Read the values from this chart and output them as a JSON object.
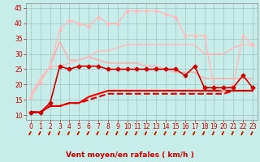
{
  "x": [
    0,
    1,
    2,
    3,
    4,
    5,
    6,
    7,
    8,
    9,
    10,
    11,
    12,
    13,
    14,
    15,
    16,
    17,
    18,
    19,
    20,
    21,
    22,
    23
  ],
  "lines": [
    {
      "y": [
        11,
        11,
        14,
        26,
        25,
        26,
        26,
        26,
        25,
        25,
        25,
        25,
        25,
        25,
        25,
        25,
        23,
        26,
        19,
        19,
        19,
        19,
        23,
        19
      ],
      "color": "#cc0000",
      "lw": 1.2,
      "marker": "D",
      "ms": 2.5,
      "ls": "-",
      "zorder": 5
    },
    {
      "y": [
        11,
        11,
        13,
        13,
        14,
        14,
        15,
        16,
        17,
        17,
        17,
        17,
        17,
        17,
        17,
        17,
        17,
        17,
        17,
        17,
        17,
        18,
        18,
        18
      ],
      "color": "#dd0000",
      "lw": 1.5,
      "marker": null,
      "ms": 0,
      "ls": "--",
      "zorder": 4
    },
    {
      "y": [
        11,
        11,
        13,
        13,
        14,
        14,
        16,
        17,
        18,
        18,
        18,
        18,
        18,
        18,
        18,
        18,
        18,
        18,
        18,
        18,
        18,
        18,
        18,
        18
      ],
      "color": "#ee0000",
      "lw": 1.5,
      "marker": null,
      "ms": 0,
      "ls": "-",
      "zorder": 3
    },
    {
      "y": [
        16,
        21,
        26,
        34,
        28,
        28,
        29,
        28,
        27,
        27,
        27,
        27,
        26,
        26,
        25,
        24,
        24,
        24,
        22,
        22,
        22,
        22,
        22,
        22
      ],
      "color": "#ffaaaa",
      "lw": 1.0,
      "marker": null,
      "ms": 0,
      "ls": "-",
      "zorder": 2
    },
    {
      "y": [
        17,
        22,
        26,
        26,
        27,
        28,
        29,
        31,
        31,
        32,
        33,
        33,
        33,
        33,
        33,
        33,
        33,
        33,
        30,
        30,
        30,
        32,
        33,
        33
      ],
      "color": "#ffbbbb",
      "lw": 1.0,
      "marker": null,
      "ms": 0,
      "ls": "-",
      "zorder": 2
    },
    {
      "y": [
        16,
        21,
        26,
        38,
        41,
        40,
        39,
        42,
        40,
        40,
        44,
        44,
        44,
        44,
        43,
        42,
        36,
        36,
        36,
        19,
        18,
        20,
        36,
        33
      ],
      "color": "#ffbbbb",
      "lw": 1.0,
      "marker": "^",
      "ms": 2.5,
      "ls": "-",
      "zorder": 3
    }
  ],
  "xlabel": "Vent moyen/en rafales ( km/h )",
  "xlim": [
    -0.5,
    23.5
  ],
  "ylim": [
    8.5,
    46.5
  ],
  "yticks": [
    10,
    15,
    20,
    25,
    30,
    35,
    40,
    45
  ],
  "xticks": [
    0,
    1,
    2,
    3,
    4,
    5,
    6,
    7,
    8,
    9,
    10,
    11,
    12,
    13,
    14,
    15,
    16,
    17,
    18,
    19,
    20,
    21,
    22,
    23
  ],
  "bg_color": "#c8ece8",
  "grid_color": "#a0c0c0",
  "tick_color": "#cc0000",
  "label_color": "#cc0000",
  "arrow_color": "#cc2200",
  "spine_color": "#888888"
}
